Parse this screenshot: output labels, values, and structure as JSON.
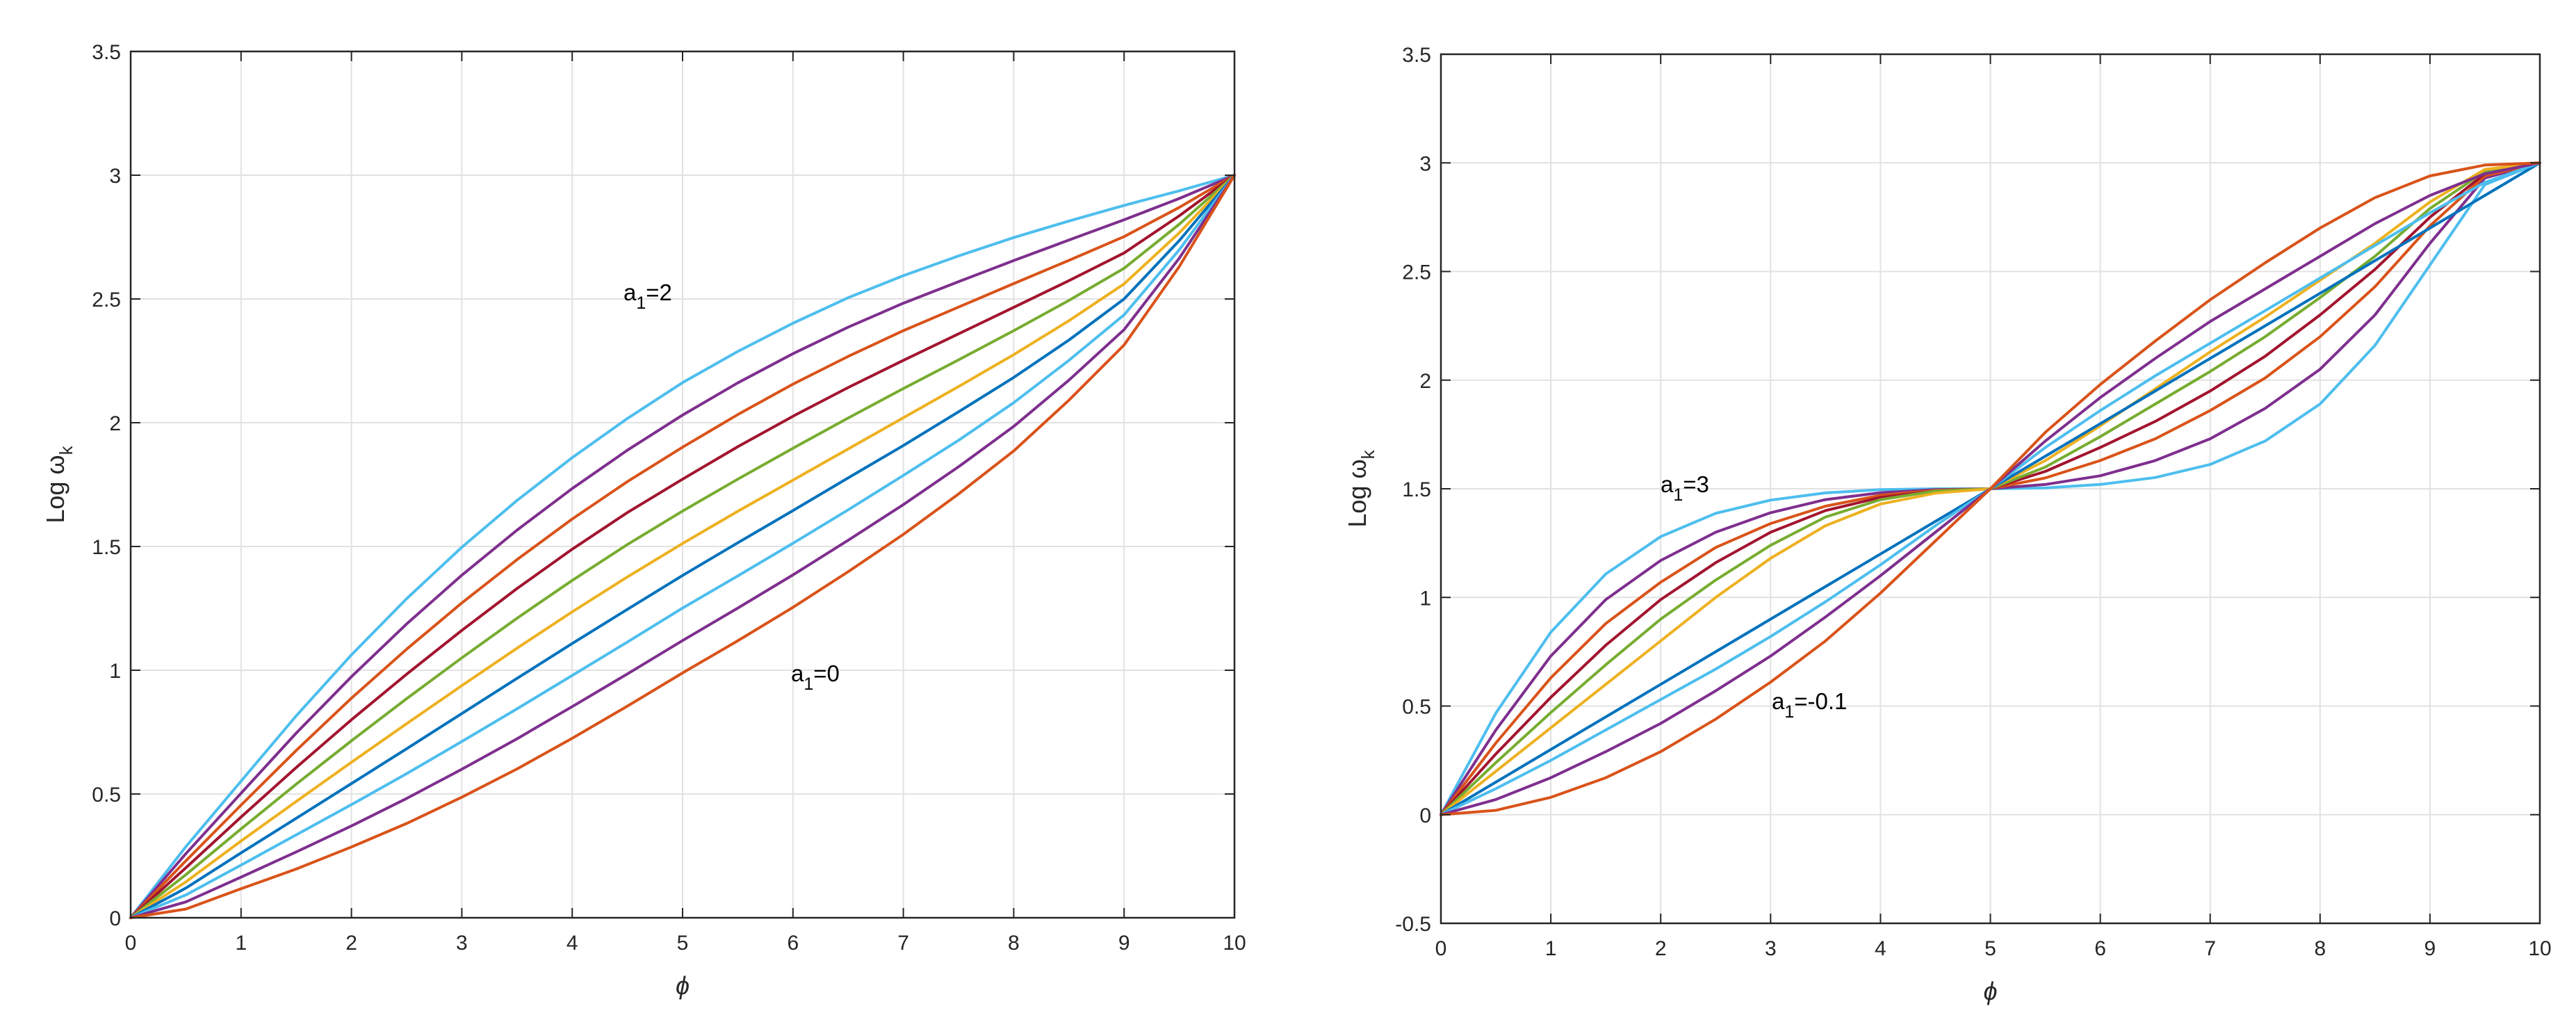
{
  "chart_data": [
    {
      "type": "line",
      "title": "",
      "xlabel": "ϕ",
      "ylabel": "Log ω",
      "ylabel_sub": "k",
      "xlim": [
        0,
        10
      ],
      "ylim": [
        0,
        3.5
      ],
      "xticks": [
        "0",
        "1",
        "2",
        "3",
        "4",
        "5",
        "6",
        "7",
        "8",
        "9",
        "10"
      ],
      "yticks": [
        "0",
        "0.5",
        "1",
        "1.5",
        "2",
        "2.5",
        "3",
        "3.5"
      ],
      "grid": true,
      "legend": "none",
      "annotations": [
        {
          "label": "a",
          "sub": "1",
          "text": "=2"
        },
        {
          "label": "a",
          "sub": "1",
          "text": "=0"
        }
      ],
      "x": [
        0,
        0.5,
        1,
        1.5,
        2,
        2.5,
        3,
        3.5,
        4,
        4.5,
        5,
        5.5,
        6,
        6.5,
        7,
        7.5,
        8,
        8.5,
        9,
        9.5,
        10
      ],
      "series": [
        {
          "color": "#4DBEEE",
          "values": [
            0,
            0.287,
            0.552,
            0.816,
            1.062,
            1.289,
            1.497,
            1.686,
            1.859,
            2.017,
            2.162,
            2.288,
            2.402,
            2.505,
            2.594,
            2.674,
            2.748,
            2.815,
            2.878,
            2.937,
            3.0
          ]
        },
        {
          "color": "#7E2F8E",
          "values": [
            0,
            0.259,
            0.503,
            0.746,
            0.974,
            1.187,
            1.384,
            1.566,
            1.734,
            1.889,
            2.031,
            2.161,
            2.279,
            2.386,
            2.483,
            2.57,
            2.655,
            2.738,
            2.82,
            2.906,
            3.0
          ]
        },
        {
          "color": "#D95319",
          "values": [
            0,
            0.23,
            0.455,
            0.676,
            0.887,
            1.085,
            1.272,
            1.447,
            1.611,
            1.762,
            1.901,
            2.033,
            2.156,
            2.268,
            2.372,
            2.467,
            2.562,
            2.656,
            2.752,
            2.87,
            3.0
          ]
        },
        {
          "color": "#A2142F",
          "values": [
            0,
            0.202,
            0.407,
            0.607,
            0.8,
            0.984,
            1.161,
            1.33,
            1.489,
            1.637,
            1.772,
            1.903,
            2.026,
            2.142,
            2.252,
            2.359,
            2.466,
            2.574,
            2.686,
            2.836,
            3.0
          ]
        },
        {
          "color": "#77AC30",
          "values": [
            0,
            0.174,
            0.359,
            0.54,
            0.715,
            0.885,
            1.05,
            1.21,
            1.363,
            1.508,
            1.643,
            1.772,
            1.897,
            2.019,
            2.138,
            2.254,
            2.372,
            2.494,
            2.624,
            2.802,
            3.0
          ]
        },
        {
          "color": "#EDB120",
          "values": [
            0,
            0.145,
            0.31,
            0.47,
            0.628,
            0.784,
            0.938,
            1.089,
            1.236,
            1.377,
            1.512,
            1.642,
            1.768,
            1.894,
            2.02,
            2.146,
            2.275,
            2.412,
            2.561,
            2.767,
            3.0
          ]
        },
        {
          "color": "#0072BD",
          "values": [
            0,
            0.12,
            0.262,
            0.402,
            0.542,
            0.683,
            0.825,
            0.967,
            1.108,
            1.246,
            1.383,
            1.515,
            1.645,
            1.777,
            1.908,
            2.044,
            2.183,
            2.334,
            2.5,
            2.736,
            3.0
          ]
        },
        {
          "color": "#4DBEEE",
          "values": [
            0,
            0.092,
            0.213,
            0.335,
            0.457,
            0.582,
            0.712,
            0.844,
            0.979,
            1.114,
            1.251,
            1.381,
            1.513,
            1.648,
            1.787,
            1.929,
            2.081,
            2.252,
            2.436,
            2.699,
            3.0
          ]
        },
        {
          "color": "#7E2F8E",
          "values": [
            0,
            0.064,
            0.164,
            0.266,
            0.371,
            0.482,
            0.6,
            0.723,
            0.853,
            0.985,
            1.12,
            1.251,
            1.385,
            1.525,
            1.669,
            1.822,
            1.985,
            2.172,
            2.376,
            2.665,
            3.0
          ]
        },
        {
          "color": "#D95319",
          "values": [
            0,
            0.035,
            0.117,
            0.197,
            0.286,
            0.381,
            0.487,
            0.601,
            0.725,
            0.855,
            0.989,
            1.119,
            1.254,
            1.398,
            1.549,
            1.712,
            1.886,
            2.091,
            2.314,
            2.631,
            3.0
          ]
        }
      ]
    },
    {
      "type": "line",
      "title": "",
      "xlabel": "ϕ",
      "ylabel": "Log ω",
      "ylabel_sub": "k",
      "xlim": [
        0,
        10
      ],
      "ylim": [
        -0.5,
        3.5
      ],
      "xticks": [
        "0",
        "1",
        "2",
        "3",
        "4",
        "5",
        "6",
        "7",
        "8",
        "9",
        "10"
      ],
      "yticks": [
        "-0.5",
        "0",
        "0.5",
        "1",
        "1.5",
        "2",
        "2.5",
        "3",
        "3.5"
      ],
      "grid": true,
      "legend": "none",
      "annotations": [
        {
          "label": "a",
          "sub": "1",
          "text": "=3"
        },
        {
          "label": "a",
          "sub": "1",
          "text": "=-0.1"
        }
      ],
      "x": [
        0,
        0.5,
        1,
        1.5,
        2,
        2.5,
        3,
        3.5,
        4,
        4.5,
        5,
        5.5,
        6,
        6.5,
        7,
        7.5,
        8,
        8.5,
        9,
        9.5,
        10
      ],
      "series": [
        {
          "color": "#4DBEEE",
          "values": [
            0,
            0.468,
            0.84,
            1.108,
            1.28,
            1.387,
            1.448,
            1.481,
            1.496,
            1.5,
            1.5,
            1.504,
            1.52,
            1.552,
            1.612,
            1.72,
            1.89,
            2.16,
            2.53,
            2.9,
            3.0
          ]
        },
        {
          "color": "#7E2F8E",
          "values": [
            0,
            0.39,
            0.73,
            0.99,
            1.17,
            1.3,
            1.39,
            1.45,
            1.482,
            1.496,
            1.5,
            1.52,
            1.56,
            1.63,
            1.73,
            1.87,
            2.05,
            2.3,
            2.63,
            2.93,
            3.0
          ]
        },
        {
          "color": "#D95319",
          "values": [
            0,
            0.33,
            0.63,
            0.88,
            1.07,
            1.23,
            1.34,
            1.42,
            1.47,
            1.493,
            1.5,
            1.55,
            1.63,
            1.73,
            1.86,
            2.01,
            2.2,
            2.43,
            2.71,
            2.94,
            3.0
          ]
        },
        {
          "color": "#A2142F",
          "values": [
            0,
            0.28,
            0.54,
            0.78,
            0.99,
            1.16,
            1.3,
            1.4,
            1.46,
            1.49,
            1.5,
            1.58,
            1.69,
            1.81,
            1.95,
            2.11,
            2.3,
            2.51,
            2.75,
            2.95,
            3.0
          ]
        },
        {
          "color": "#77AC30",
          "values": [
            0,
            0.24,
            0.47,
            0.69,
            0.9,
            1.08,
            1.24,
            1.37,
            1.45,
            1.49,
            1.5,
            1.6,
            1.74,
            1.89,
            2.04,
            2.2,
            2.38,
            2.57,
            2.79,
            2.96,
            3.0
          ]
        },
        {
          "color": "#EDB120",
          "values": [
            0,
            0.2,
            0.4,
            0.6,
            0.8,
            1.0,
            1.18,
            1.33,
            1.43,
            1.48,
            1.5,
            1.63,
            1.79,
            1.96,
            2.13,
            2.29,
            2.46,
            2.63,
            2.82,
            2.97,
            3.0
          ]
        },
        {
          "color": "#0072BD",
          "values": [
            0,
            0.15,
            0.3,
            0.45,
            0.6,
            0.75,
            0.9,
            1.05,
            1.2,
            1.35,
            1.5,
            1.65,
            1.8,
            1.95,
            2.1,
            2.25,
            2.4,
            2.55,
            2.7,
            2.85,
            3.0
          ]
        },
        {
          "color": "#4DBEEE",
          "values": [
            0,
            0.12,
            0.25,
            0.39,
            0.53,
            0.67,
            0.82,
            0.98,
            1.15,
            1.33,
            1.5,
            1.69,
            1.86,
            2.02,
            2.17,
            2.32,
            2.47,
            2.62,
            2.77,
            2.91,
            3.0
          ]
        },
        {
          "color": "#7E2F8E",
          "values": [
            0,
            0.07,
            0.17,
            0.29,
            0.42,
            0.57,
            0.73,
            0.91,
            1.1,
            1.3,
            1.5,
            1.72,
            1.92,
            2.1,
            2.27,
            2.42,
            2.57,
            2.72,
            2.85,
            2.95,
            3.0
          ]
        },
        {
          "color": "#D95319",
          "values": [
            0,
            0.02,
            0.08,
            0.17,
            0.29,
            0.44,
            0.61,
            0.8,
            1.02,
            1.26,
            1.5,
            1.76,
            1.98,
            2.18,
            2.37,
            2.54,
            2.7,
            2.84,
            2.94,
            2.99,
            3.0
          ]
        }
      ]
    }
  ]
}
